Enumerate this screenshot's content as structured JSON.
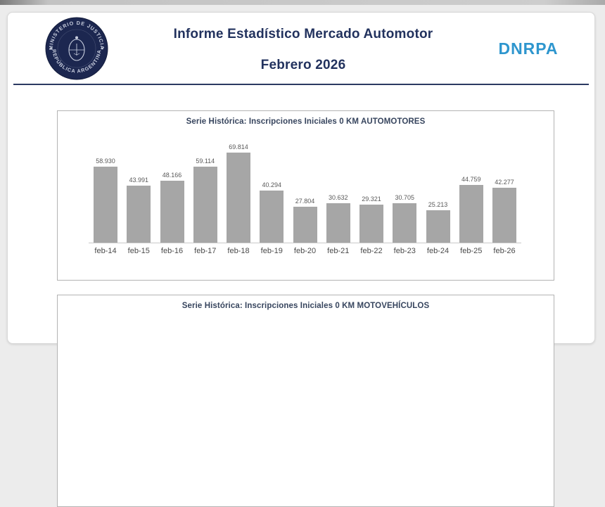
{
  "header": {
    "title_line1": "Informe Estadístico Mercado Automotor",
    "title_line2": "Febrero 2026",
    "title_color": "#22325E",
    "org_acronym": "DNRPA",
    "org_color": "#2E96CE",
    "logo": {
      "top_text": "MINISTERIO DE JUSTICIA",
      "bottom_text": "REPÚBLICA ARGENTINA",
      "bg_color": "#1C2750",
      "text_color": "#C9CFDF"
    }
  },
  "chart_data": [
    {
      "type": "bar",
      "title": "Serie Histórica: Inscripciones Iniciales 0 KM AUTOMOTORES",
      "title_color": "#37455E",
      "categories": [
        "feb-14",
        "feb-15",
        "feb-16",
        "feb-17",
        "feb-18",
        "feb-19",
        "feb-20",
        "feb-21",
        "feb-22",
        "feb-23",
        "feb-24",
        "feb-25",
        "feb-26"
      ],
      "values": [
        58930,
        43991,
        48166,
        59114,
        69814,
        40294,
        27804,
        30632,
        29321,
        30705,
        25213,
        44759,
        42277
      ],
      "value_labels": [
        "58.930",
        "43.991",
        "48.166",
        "59.114",
        "69.814",
        "40.294",
        "27.804",
        "30.632",
        "29.321",
        "30.705",
        "25.213",
        "44.759",
        "42.277"
      ],
      "bar_color": "#A6A6A6",
      "value_label_color": "#595959",
      "category_label_color": "#4A4A4A",
      "ylim": [
        0,
        70000
      ],
      "grid": false,
      "legend": "none",
      "value_labels_position": "above",
      "xlabel": "",
      "ylabel": ""
    },
    {
      "type": "bar",
      "title": "Serie Histórica: Inscripciones Iniciales 0 KM MOTOVEHÍCULOS",
      "title_color": "#37455E"
    }
  ]
}
